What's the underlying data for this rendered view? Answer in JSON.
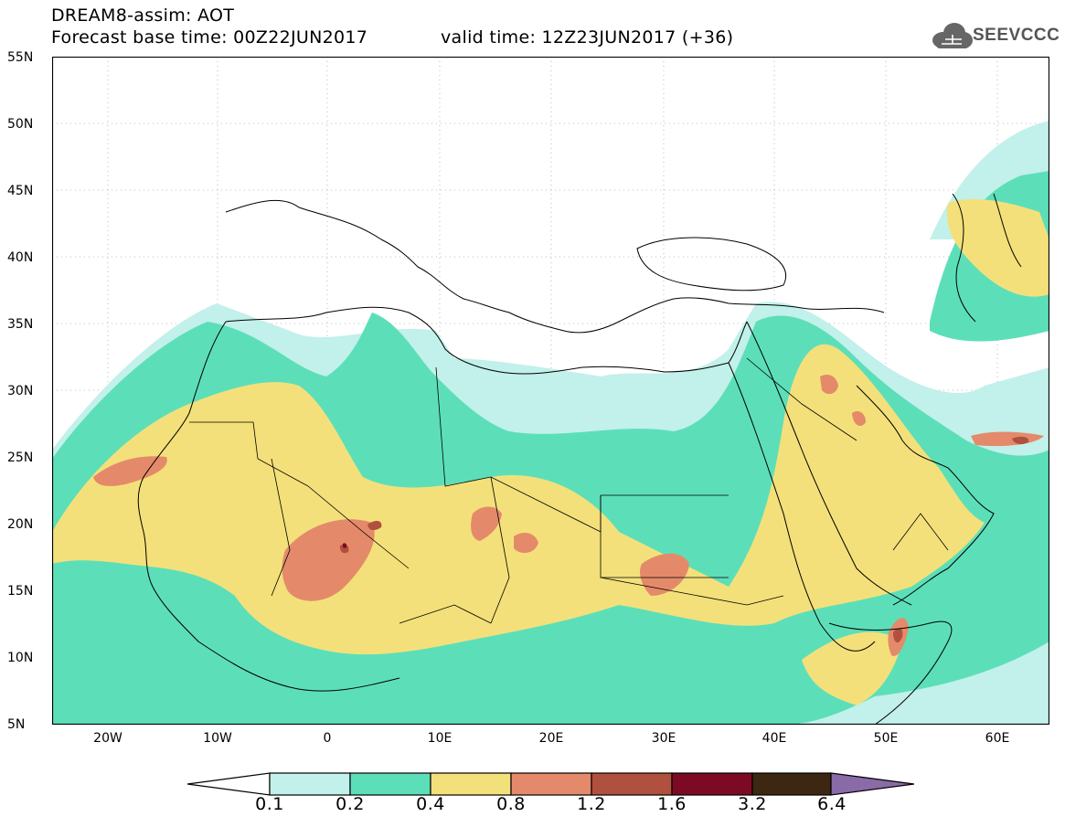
{
  "header": {
    "title": "DREAM8-assim: AOT",
    "base_time": "Forecast base time: 00Z22JUN2017",
    "valid_time": "valid time: 12Z23JUN2017 (+36)",
    "logo_text": "SEEVCCC"
  },
  "map": {
    "lat_labels": [
      "55N",
      "50N",
      "45N",
      "40N",
      "35N",
      "30N",
      "25N",
      "20N",
      "15N",
      "10N",
      "5N"
    ],
    "lon_labels": [
      "20W",
      "10W",
      "0",
      "10E",
      "20E",
      "30E",
      "40E",
      "50E",
      "60E"
    ]
  },
  "legend": {
    "labels": [
      "0.1",
      "0.2",
      "0.4",
      "0.8",
      "1.2",
      "1.6",
      "3.2",
      "6.4"
    ],
    "colors": [
      "#ffffff",
      "#c2f0ea",
      "#5cdfb9",
      "#f4e07a",
      "#e48a6a",
      "#b0503e",
      "#7c0a24",
      "#3d2713",
      "#8b6aa8"
    ]
  }
}
